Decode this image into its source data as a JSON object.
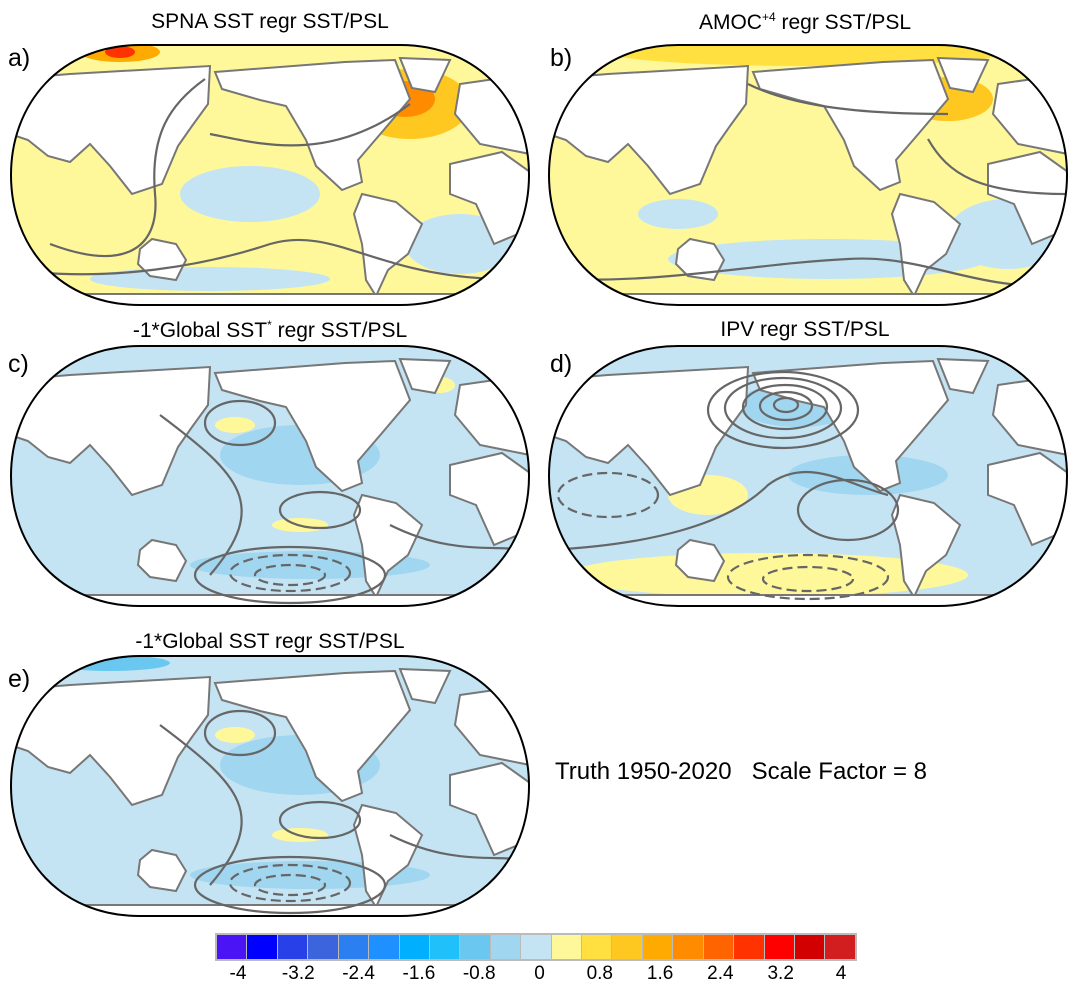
{
  "panels": [
    {
      "label": "a)",
      "title": "SPNA SST regr SST/PSL"
    },
    {
      "label": "b)",
      "title_main": "AMOC",
      "title_sup": "+4",
      "title_rest": " regr SST/PSL"
    },
    {
      "label": "c)",
      "title_main": "-1*Global SST",
      "title_sup": "*",
      "title_rest": " regr SST/PSL"
    },
    {
      "label": "d)",
      "title": "IPV regr SST/PSL"
    },
    {
      "label": "e)",
      "title": "-1*Global SST regr SST/PSL"
    }
  ],
  "info": {
    "truth": "Truth 1950-2020",
    "scale": "Scale Factor = 8"
  },
  "colorbar": {
    "colors": [
      "#4b14f5",
      "#0000ff",
      "#2840e8",
      "#3c64dc",
      "#2c7ff0",
      "#1e90ff",
      "#00b0ff",
      "#20c0fa",
      "#6ac8f0",
      "#a0d6f0",
      "#c4e4f4",
      "#fff89a",
      "#ffe040",
      "#ffc820",
      "#ffaa00",
      "#ff8c00",
      "#ff6400",
      "#ff3200",
      "#ff0000",
      "#d20000",
      "#d21e1e",
      "#f07878"
    ],
    "labels": [
      "-4",
      "-3.2",
      "-2.4",
      "-1.6",
      "-0.8",
      "0",
      "0.8",
      "1.6",
      "2.4",
      "3.2",
      "4"
    ]
  }
}
